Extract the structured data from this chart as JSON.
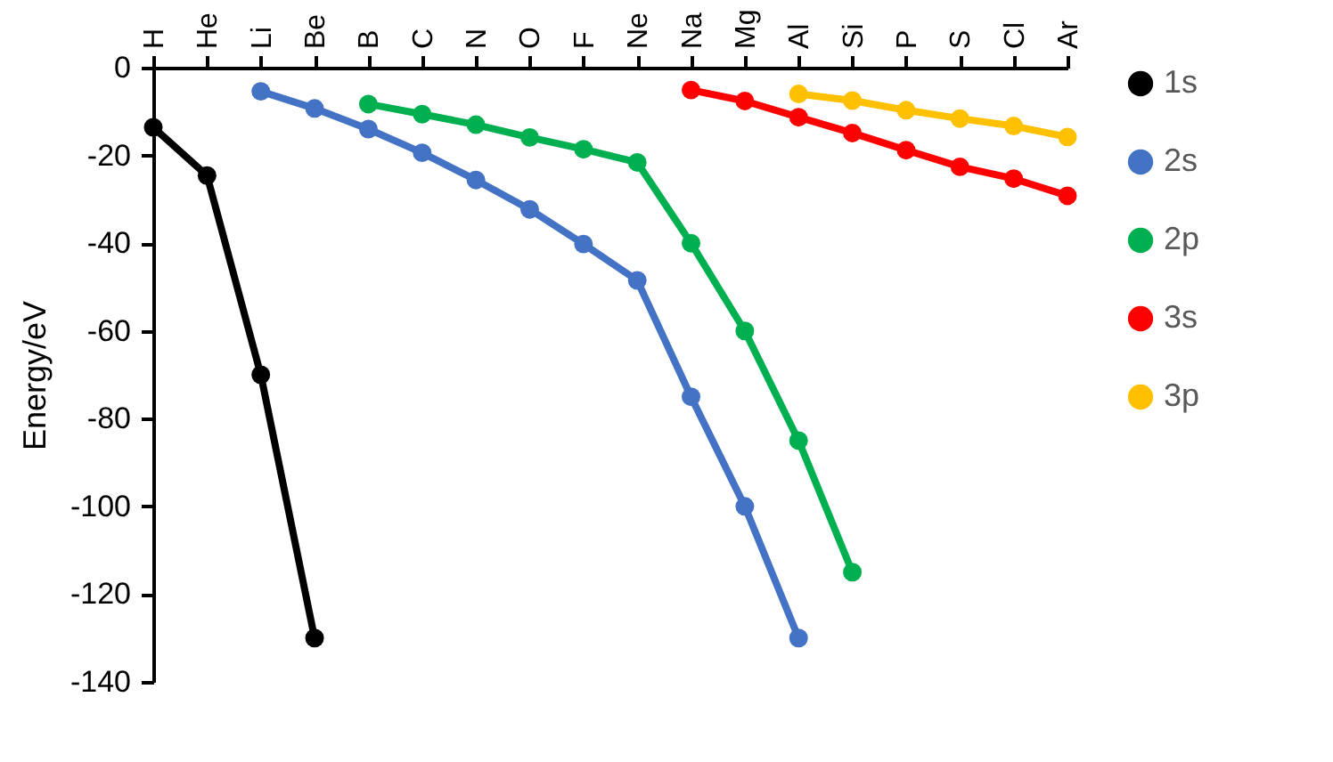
{
  "chart_data": {
    "type": "line",
    "ylabel": "Energy/eV",
    "categories": [
      "H",
      "He",
      "Li",
      "Be",
      "B",
      "C",
      "N",
      "O",
      "F",
      "Ne",
      "Na",
      "Mg",
      "Al",
      "Si",
      "P",
      "S",
      "Cl",
      "Ar"
    ],
    "series": [
      {
        "name": "1s",
        "color": "#000000",
        "values": [
          -13.6,
          -24.6,
          -70,
          -130,
          null,
          null,
          null,
          null,
          null,
          null,
          null,
          null,
          null,
          null,
          null,
          null,
          null,
          null
        ]
      },
      {
        "name": "2s",
        "color": "#4472c4",
        "values": [
          null,
          null,
          -5.4,
          -9.3,
          -14,
          -19.4,
          -25.6,
          -32.3,
          -40.2,
          -48.5,
          -75,
          -100,
          -130,
          null,
          null,
          null,
          null,
          null
        ]
      },
      {
        "name": "2p",
        "color": "#00b050",
        "values": [
          null,
          null,
          null,
          null,
          -8.3,
          -10.6,
          -13,
          -15.9,
          -18.6,
          -21.6,
          -40,
          -60,
          -85,
          -115,
          null,
          null,
          null,
          null
        ]
      },
      {
        "name": "3s",
        "color": "#ff0000",
        "values": [
          null,
          null,
          null,
          null,
          null,
          null,
          null,
          null,
          null,
          null,
          -5.1,
          -7.6,
          -11.3,
          -14.9,
          -18.8,
          -22.6,
          -25.3,
          -29.2
        ]
      },
      {
        "name": "3p",
        "color": "#ffc000",
        "values": [
          null,
          null,
          null,
          null,
          null,
          null,
          null,
          null,
          null,
          null,
          null,
          null,
          -6,
          -7.5,
          -9.7,
          -11.6,
          -13.3,
          -15.8
        ]
      }
    ],
    "ylim": [
      -140,
      0
    ],
    "yticks": [
      0,
      -20,
      -40,
      -60,
      -80,
      -100,
      -120,
      -140
    ],
    "marker": "circle",
    "legend": "right",
    "grid": false
  }
}
